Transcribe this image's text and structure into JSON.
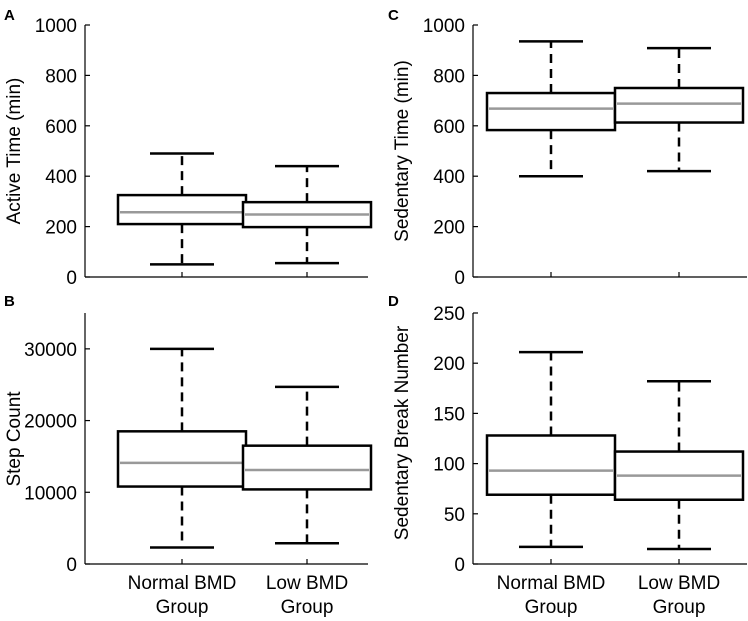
{
  "colors": {
    "axis": "#000000",
    "box": "#000000",
    "median": "#999999"
  },
  "chart_data": [
    {
      "type": "box",
      "panel": "A",
      "ylabel": "Active Time (min)",
      "ylim": [
        0,
        1000
      ],
      "yticks": [
        0,
        200,
        400,
        600,
        800,
        1000
      ],
      "ytick_labels": [
        "0",
        "200",
        "400",
        "600",
        "800",
        "1000"
      ],
      "categories": [
        "Normal BMD Group",
        "Low BMD Group"
      ],
      "boxes": [
        {
          "name": "Normal BMD Group",
          "min": 50,
          "q1": 210,
          "median": 257,
          "q3": 325,
          "max": 490
        },
        {
          "name": "Low BMD Group",
          "min": 55,
          "q1": 198,
          "median": 248,
          "q3": 297,
          "max": 440
        }
      ]
    },
    {
      "type": "box",
      "panel": "B",
      "ylabel": "Step Count",
      "ylim": [
        0,
        35000
      ],
      "yticks": [
        0,
        10000,
        20000,
        30000
      ],
      "ytick_labels": [
        "0",
        "10000",
        "20000",
        "30000"
      ],
      "categories": [
        "Normal BMD Group",
        "Low BMD Group"
      ],
      "xtick_lines": [
        [
          "Normal BMD",
          "Group"
        ],
        [
          "Low BMD",
          "Group"
        ]
      ],
      "boxes": [
        {
          "name": "Normal BMD Group",
          "min": 2300,
          "q1": 10800,
          "median": 14100,
          "q3": 18500,
          "max": 30000
        },
        {
          "name": "Low BMD Group",
          "min": 2900,
          "q1": 10400,
          "median": 13100,
          "q3": 16500,
          "max": 24700
        }
      ]
    },
    {
      "type": "box",
      "panel": "C",
      "ylabel": "Sedentary Time (min)",
      "ylim": [
        0,
        1000
      ],
      "yticks": [
        0,
        200,
        400,
        600,
        800,
        1000
      ],
      "ytick_labels": [
        "0",
        "200",
        "400",
        "600",
        "800",
        "1000"
      ],
      "categories": [
        "Normal BMD Group",
        "Low BMD Group"
      ],
      "boxes": [
        {
          "name": "Normal BMD Group",
          "min": 400,
          "q1": 583,
          "median": 668,
          "q3": 730,
          "max": 935
        },
        {
          "name": "Low BMD Group",
          "min": 420,
          "q1": 613,
          "median": 688,
          "q3": 750,
          "max": 908
        }
      ]
    },
    {
      "type": "box",
      "panel": "D",
      "ylabel": "Sedentary Break Number",
      "ylim": [
        0,
        250
      ],
      "yticks": [
        0,
        50,
        100,
        150,
        200,
        250
      ],
      "ytick_labels": [
        "0",
        "50",
        "100",
        "150",
        "200",
        "250"
      ],
      "categories": [
        "Normal BMD Group",
        "Low BMD Group"
      ],
      "xtick_lines": [
        [
          "Normal BMD",
          "Group"
        ],
        [
          "Low BMD",
          "Group"
        ]
      ],
      "boxes": [
        {
          "name": "Normal BMD Group",
          "min": 17,
          "q1": 69,
          "median": 93,
          "q3": 128,
          "max": 211
        },
        {
          "name": "Low BMD Group",
          "min": 15,
          "q1": 64,
          "median": 88,
          "q3": 112,
          "max": 182
        }
      ]
    }
  ]
}
